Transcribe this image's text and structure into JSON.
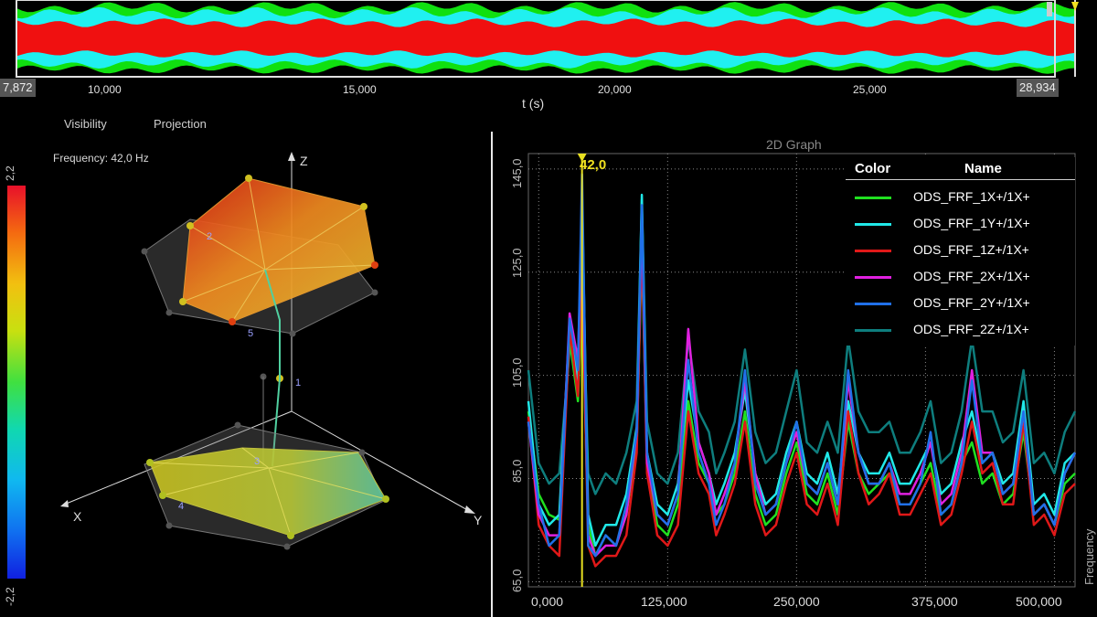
{
  "overview": {
    "start_box": "7,872",
    "end_box": "28,934",
    "ticks": [
      "10,000",
      "15,000",
      "20,000",
      "25,000"
    ],
    "axis_unit": "t (s)"
  },
  "left_panel": {
    "tabs": [
      "Visibility",
      "Projection"
    ],
    "frequency_readout": "Frequency: 42,0 Hz",
    "colorbar_max": "2,2",
    "colorbar_min": "-2,2",
    "axes": {
      "x": "X",
      "y": "Y",
      "z": "Z"
    },
    "node_labels": [
      "1",
      "2",
      "3",
      "4",
      "5"
    ]
  },
  "graph": {
    "title": "2D Graph",
    "marker_label": "42,0",
    "legend_headers": {
      "color": "Color",
      "name": "Name"
    },
    "y_axis_label": "Frequency (Hz)",
    "y_ticks": [
      "65,0",
      "85,0",
      "105,0",
      "125,0",
      "145,0"
    ],
    "x_ticks": [
      "0,000",
      "125,000",
      "250,000",
      "375,000",
      "500,000"
    ]
  },
  "chart_data": {
    "type": "line",
    "title": "2D Graph",
    "xlabel": "",
    "ylabel": "Frequency (Hz)",
    "xlim": [
      -10,
      520
    ],
    "ylim": [
      64,
      148
    ],
    "grid": true,
    "legend_position": "top-right",
    "marker_x": 42,
    "x": [
      -10,
      0,
      10,
      20,
      30,
      38,
      42,
      48,
      55,
      65,
      75,
      85,
      95,
      100,
      105,
      115,
      125,
      135,
      145,
      155,
      165,
      172,
      180,
      190,
      200,
      210,
      220,
      230,
      240,
      250,
      260,
      270,
      280,
      290,
      300,
      310,
      320,
      330,
      340,
      350,
      360,
      370,
      380,
      390,
      400,
      410,
      420,
      430,
      440,
      450,
      460,
      470,
      480,
      490,
      500,
      510,
      520
    ],
    "series": [
      {
        "name": "ODS_FRF_1X+/1X+",
        "color": "#20e020",
        "values": [
          98,
          82,
          78,
          77,
          112,
          100,
          120,
          76,
          70,
          74,
          72,
          78,
          92,
          129,
          88,
          76,
          74,
          80,
          100,
          88,
          84,
          78,
          80,
          86,
          98,
          82,
          76,
          78,
          86,
          92,
          82,
          80,
          86,
          78,
          96,
          86,
          82,
          84,
          86,
          80,
          80,
          84,
          88,
          78,
          80,
          88,
          92,
          84,
          86,
          80,
          82,
          94,
          78,
          80,
          76,
          84,
          86
        ]
      },
      {
        "name": "ODS_FRF_1Y+/1X+",
        "color": "#20e8e8",
        "values": [
          100,
          80,
          76,
          78,
          115,
          103,
          140,
          78,
          72,
          76,
          76,
          82,
          95,
          140,
          90,
          80,
          78,
          84,
          104,
          92,
          86,
          80,
          84,
          90,
          102,
          86,
          80,
          82,
          90,
          96,
          86,
          84,
          90,
          82,
          100,
          90,
          86,
          86,
          90,
          84,
          84,
          88,
          92,
          82,
          84,
          92,
          98,
          88,
          90,
          84,
          86,
          100,
          80,
          82,
          78,
          88,
          90
        ]
      },
      {
        "name": "ODS_FRF_1Z+/1X+",
        "color": "#e01818",
        "values": [
          97,
          76,
          72,
          70,
          114,
          101,
          126,
          72,
          68,
          70,
          70,
          74,
          90,
          132,
          86,
          74,
          72,
          76,
          98,
          86,
          82,
          74,
          78,
          84,
          96,
          80,
          74,
          76,
          84,
          90,
          80,
          78,
          84,
          76,
          98,
          86,
          80,
          82,
          86,
          78,
          78,
          82,
          86,
          76,
          78,
          86,
          96,
          86,
          88,
          80,
          80,
          96,
          76,
          78,
          74,
          82,
          84
        ]
      },
      {
        "name": "ODS_FRF_2X+/1X+",
        "color": "#e020e0",
        "values": [
          96,
          78,
          74,
          74,
          117,
          108,
          135,
          74,
          70,
          72,
          72,
          78,
          94,
          136,
          88,
          78,
          76,
          82,
          114,
          92,
          86,
          78,
          82,
          88,
          104,
          86,
          78,
          80,
          88,
          94,
          84,
          82,
          88,
          80,
          104,
          90,
          84,
          84,
          88,
          82,
          82,
          86,
          92,
          80,
          82,
          90,
          106,
          90,
          90,
          82,
          84,
          98,
          78,
          80,
          76,
          86,
          90
        ]
      },
      {
        "name": "ODS_FRF_2Y+/1X+",
        "color": "#2070e8",
        "values": [
          96,
          80,
          72,
          74,
          116,
          106,
          144,
          72,
          70,
          74,
          72,
          80,
          94,
          138,
          90,
          78,
          76,
          82,
          108,
          90,
          84,
          76,
          80,
          88,
          106,
          84,
          78,
          80,
          88,
          96,
          84,
          82,
          88,
          80,
          106,
          90,
          84,
          84,
          88,
          80,
          80,
          84,
          94,
          78,
          80,
          88,
          104,
          88,
          90,
          82,
          84,
          98,
          78,
          80,
          76,
          86,
          90
        ]
      },
      {
        "name": "ODS_FRF_2Z+/1X+",
        "color": "#0e7e7e",
        "values": [
          106,
          88,
          84,
          86,
          110,
          108,
          128,
          86,
          82,
          86,
          84,
          90,
          100,
          139,
          96,
          86,
          84,
          90,
          112,
          98,
          94,
          86,
          90,
          96,
          110,
          94,
          88,
          90,
          98,
          106,
          92,
          90,
          96,
          90,
          112,
          98,
          94,
          94,
          96,
          90,
          90,
          94,
          100,
          88,
          90,
          98,
          112,
          98,
          98,
          92,
          94,
          106,
          88,
          90,
          86,
          94,
          98
        ]
      }
    ]
  }
}
